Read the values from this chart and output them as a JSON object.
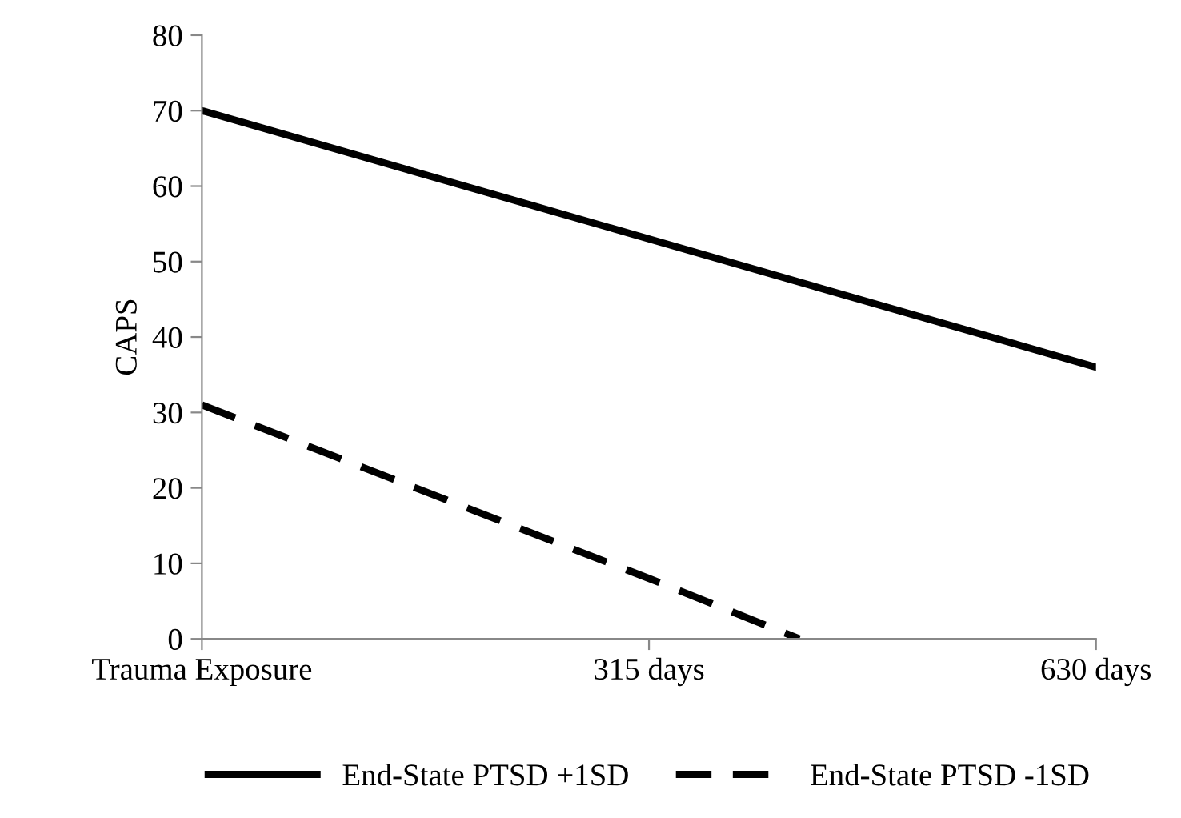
{
  "chart_data": {
    "type": "line",
    "ylabel": "CAPS",
    "xlim": [
      0,
      630
    ],
    "ylim": [
      0,
      80
    ],
    "xticks": [
      {
        "value": 0,
        "label": "Trauma Exposure"
      },
      {
        "value": 315,
        "label": "315 days"
      },
      {
        "value": 630,
        "label": "630 days"
      }
    ],
    "yticks": [
      0,
      10,
      20,
      30,
      40,
      50,
      60,
      70,
      80
    ],
    "grid": false,
    "legend": "bottom",
    "series": [
      {
        "name": "End-State PTSD +1SD",
        "color": "#000000",
        "line_style": "solid",
        "x": [
          0,
          315,
          630
        ],
        "values": [
          70,
          53,
          36
        ]
      },
      {
        "name": "End-State PTSD -1SD",
        "color": "#000000",
        "line_style": "dashed",
        "x": [
          0,
          315,
          421
        ],
        "values": [
          31,
          8,
          0
        ]
      }
    ]
  }
}
